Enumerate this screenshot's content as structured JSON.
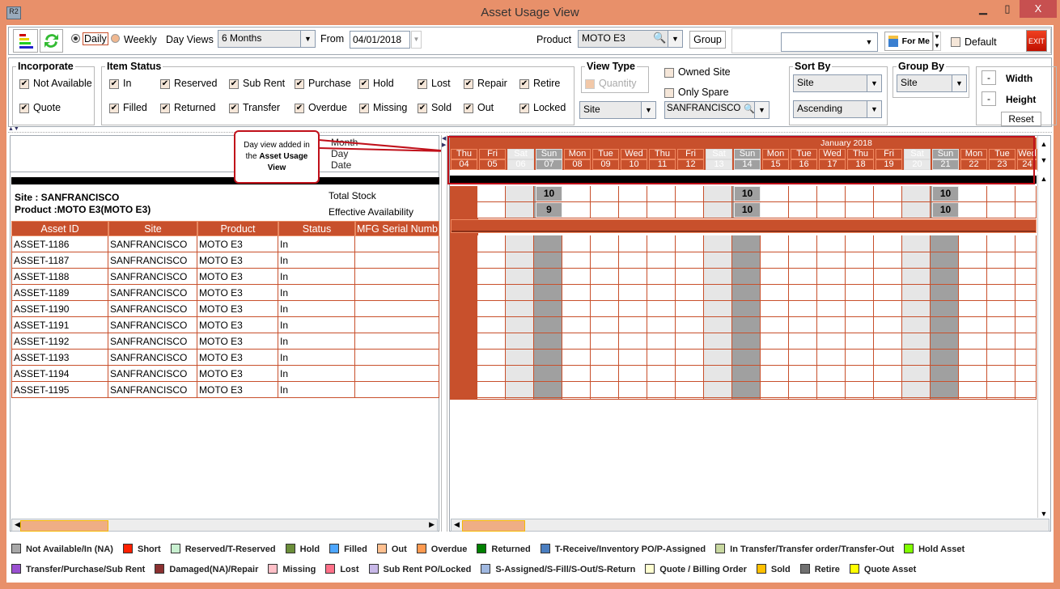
{
  "window": {
    "title": "Asset Usage View",
    "app_icon": "R2",
    "minimize": "▁",
    "maximize": "▯",
    "close": "X"
  },
  "toolbar": {
    "daily": "Daily",
    "weekly": "Weekly",
    "view_mode": "Daily",
    "day_views_label": "Day Views",
    "day_views_value": "6 Months",
    "from_label": "From",
    "from_value": "04/01/2018",
    "product_label": "Product",
    "product_value": "MOTO E3",
    "group_button": "Group",
    "saved_view_value": "",
    "for_me": "For Me",
    "default_label": "Default",
    "exit": "EXIT"
  },
  "incorporate": {
    "title": "Incorporate",
    "items": [
      {
        "label": "Not Available",
        "checked": true
      },
      {
        "label": "Quote",
        "checked": true
      }
    ]
  },
  "item_status": {
    "title": "Item Status",
    "items": [
      {
        "label": "In",
        "checked": true
      },
      {
        "label": "Reserved",
        "checked": true
      },
      {
        "label": "Sub Rent",
        "checked": true
      },
      {
        "label": "Purchase",
        "checked": true
      },
      {
        "label": "Hold",
        "checked": true
      },
      {
        "label": "Lost",
        "checked": true
      },
      {
        "label": "Repair",
        "checked": true
      },
      {
        "label": "Retire",
        "checked": true
      },
      {
        "label": "Filled",
        "checked": true
      },
      {
        "label": "Returned",
        "checked": true
      },
      {
        "label": "Transfer",
        "checked": true
      },
      {
        "label": "Overdue",
        "checked": true
      },
      {
        "label": "Missing",
        "checked": true
      },
      {
        "label": "Sold",
        "checked": true
      },
      {
        "label": "Out",
        "checked": true
      },
      {
        "label": "Locked",
        "checked": true
      }
    ]
  },
  "view_type": {
    "title": "View Type",
    "quantity": "Quantity",
    "value": "Site",
    "owned_site": "Owned Site",
    "only_spare": "Only Spare",
    "site_value": "SANFRANCISCO"
  },
  "sort_by": {
    "title": "Sort By",
    "field": "Site",
    "order": "Ascending"
  },
  "group_by": {
    "title": "Group By",
    "value": "Site"
  },
  "size": {
    "width": "Width",
    "height": "Height",
    "minus": "-",
    "reset": "Reset"
  },
  "annotation": {
    "line1": "Day view added in",
    "line2a": "the ",
    "line2b": "Asset Usage",
    "line3": "View"
  },
  "left": {
    "row_labels": {
      "month": "Month",
      "day": "Day",
      "date": "Date"
    },
    "site": "Site : SANFRANCISCO",
    "product": "Product :MOTO E3(MOTO E3)",
    "total_stock": "Total Stock",
    "effective_availability": "Effective Availability",
    "columns": [
      "Asset ID",
      "Site",
      "Product",
      "Status",
      "MFG Serial Numb"
    ],
    "rows": [
      [
        "ASSET-1186",
        "SANFRANCISCO",
        "MOTO E3",
        "In",
        ""
      ],
      [
        "ASSET-1187",
        "SANFRANCISCO",
        "MOTO E3",
        "In",
        ""
      ],
      [
        "ASSET-1188",
        "SANFRANCISCO",
        "MOTO E3",
        "In",
        ""
      ],
      [
        "ASSET-1189",
        "SANFRANCISCO",
        "MOTO E3",
        "In",
        ""
      ],
      [
        "ASSET-1190",
        "SANFRANCISCO",
        "MOTO E3",
        "In",
        ""
      ],
      [
        "ASSET-1191",
        "SANFRANCISCO",
        "MOTO E3",
        "In",
        ""
      ],
      [
        "ASSET-1192",
        "SANFRANCISCO",
        "MOTO E3",
        "In",
        ""
      ],
      [
        "ASSET-1193",
        "SANFRANCISCO",
        "MOTO E3",
        "In",
        ""
      ],
      [
        "ASSET-1194",
        "SANFRANCISCO",
        "MOTO E3",
        "In",
        ""
      ],
      [
        "ASSET-1195",
        "SANFRANCISCO",
        "MOTO E3",
        "In",
        ""
      ]
    ]
  },
  "calendar": {
    "month": "January 2018",
    "days": [
      {
        "day": "Thu",
        "date": "04"
      },
      {
        "day": "Fri",
        "date": "05"
      },
      {
        "day": "Sat",
        "date": "06"
      },
      {
        "day": "Sun",
        "date": "07",
        "total": "10",
        "eff": "9"
      },
      {
        "day": "Mon",
        "date": "08"
      },
      {
        "day": "Tue",
        "date": "09"
      },
      {
        "day": "Wed",
        "date": "10"
      },
      {
        "day": "Thu",
        "date": "11"
      },
      {
        "day": "Fri",
        "date": "12"
      },
      {
        "day": "Sat",
        "date": "13"
      },
      {
        "day": "Sun",
        "date": "14",
        "total": "10",
        "eff": "10"
      },
      {
        "day": "Mon",
        "date": "15"
      },
      {
        "day": "Tue",
        "date": "16"
      },
      {
        "day": "Wed",
        "date": "17"
      },
      {
        "day": "Thu",
        "date": "18"
      },
      {
        "day": "Fri",
        "date": "19"
      },
      {
        "day": "Sat",
        "date": "20"
      },
      {
        "day": "Sun",
        "date": "21",
        "total": "10",
        "eff": "10"
      },
      {
        "day": "Mon",
        "date": "22"
      },
      {
        "day": "Tue",
        "date": "23"
      },
      {
        "day": "Wed",
        "date": "24"
      }
    ]
  },
  "colors": {
    "accent": "#C8502C",
    "window": "#E8906A",
    "saturday": "#E6E6E6",
    "sunday": "#A0A0A0"
  },
  "legend": [
    [
      {
        "label": "Not Available/In (NA)",
        "color": "#A8A8A8"
      },
      {
        "label": "Short",
        "color": "#FF2000"
      },
      {
        "label": "Reserved/T-Reserved",
        "color": "#C8F0D0"
      },
      {
        "label": "Hold",
        "color": "#6B8E3A"
      },
      {
        "label": "Filled",
        "color": "#4DA6FF"
      },
      {
        "label": "Out",
        "color": "#FFC090"
      },
      {
        "label": "Overdue",
        "color": "#FF9A50"
      },
      {
        "label": "Returned",
        "color": "#008000"
      },
      {
        "label": "T-Receive/Inventory PO/P-Assigned",
        "color": "#4A7EC0"
      },
      {
        "label": "In Transfer/Transfer order/Transfer-Out",
        "color": "#C8D8A0"
      },
      {
        "label": "Hold Asset",
        "color": "#80FF00"
      }
    ],
    [
      {
        "label": "Transfer/Purchase/Sub Rent",
        "color": "#9A50D0"
      },
      {
        "label": "Damaged(NA)/Repair",
        "color": "#8B3030"
      },
      {
        "label": "Missing",
        "color": "#FFC0C8"
      },
      {
        "label": "Lost",
        "color": "#FF7088"
      },
      {
        "label": "Sub Rent PO/Locked",
        "color": "#C8B8E8"
      },
      {
        "label": "S-Assigned/S-Fill/S-Out/S-Return",
        "color": "#A0B8E0"
      },
      {
        "label": "Quote / Billing Order",
        "color": "#FFFFD0"
      },
      {
        "label": "Sold",
        "color": "#FFC000"
      },
      {
        "label": "Retire",
        "color": "#707070"
      },
      {
        "label": "Quote Asset",
        "color": "#FFFF00"
      }
    ]
  ]
}
